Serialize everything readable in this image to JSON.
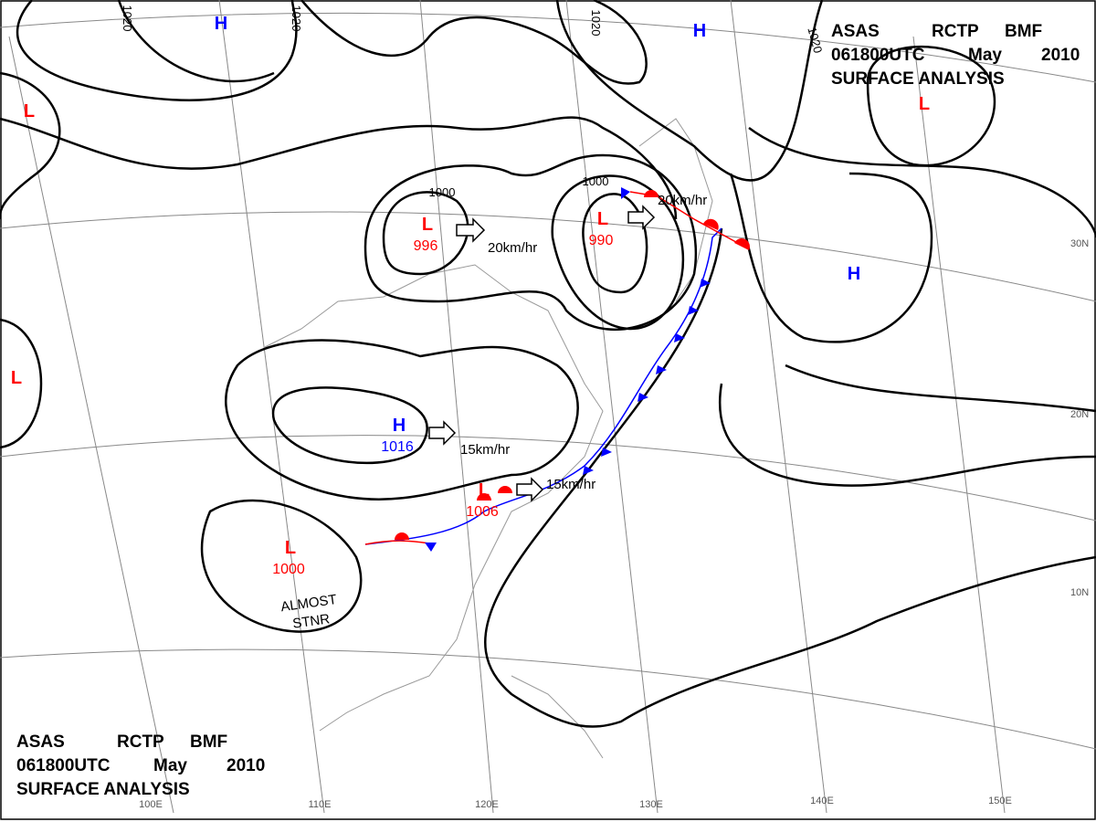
{
  "header": {
    "agency": "ASAS",
    "station": "RCTP",
    "unit": "BMF",
    "time": "061800UTC",
    "month": "May",
    "year": "2010",
    "title": "SURFACE ANALYSIS"
  },
  "pressure_centers": [
    {
      "symbol": "H"
    },
    {
      "symbol": "H"
    },
    {
      "symbol": "L"
    },
    {
      "symbol": "L"
    },
    {
      "symbol": "L"
    },
    {
      "symbol": "L",
      "value": "996"
    },
    {
      "symbol": "L",
      "value": "990"
    },
    {
      "symbol": "H"
    },
    {
      "symbol": "H",
      "value": "1016"
    },
    {
      "symbol": "L",
      "value": "1006"
    },
    {
      "symbol": "L",
      "value": "1000"
    }
  ],
  "isobar_labels": [
    "1020",
    "1020",
    "1020",
    "1020",
    "1000",
    "1000"
  ],
  "motion_labels": [
    "20km/hr",
    "20km/hr",
    "15km/hr",
    "15km/hr"
  ],
  "annotation": [
    "ALMOST",
    "STNR"
  ],
  "longitude_labels": [
    "100E",
    "110E",
    "120E",
    "130E",
    "140E",
    "150E"
  ],
  "latitude_labels": [
    "30N",
    "20N",
    "10N"
  ]
}
